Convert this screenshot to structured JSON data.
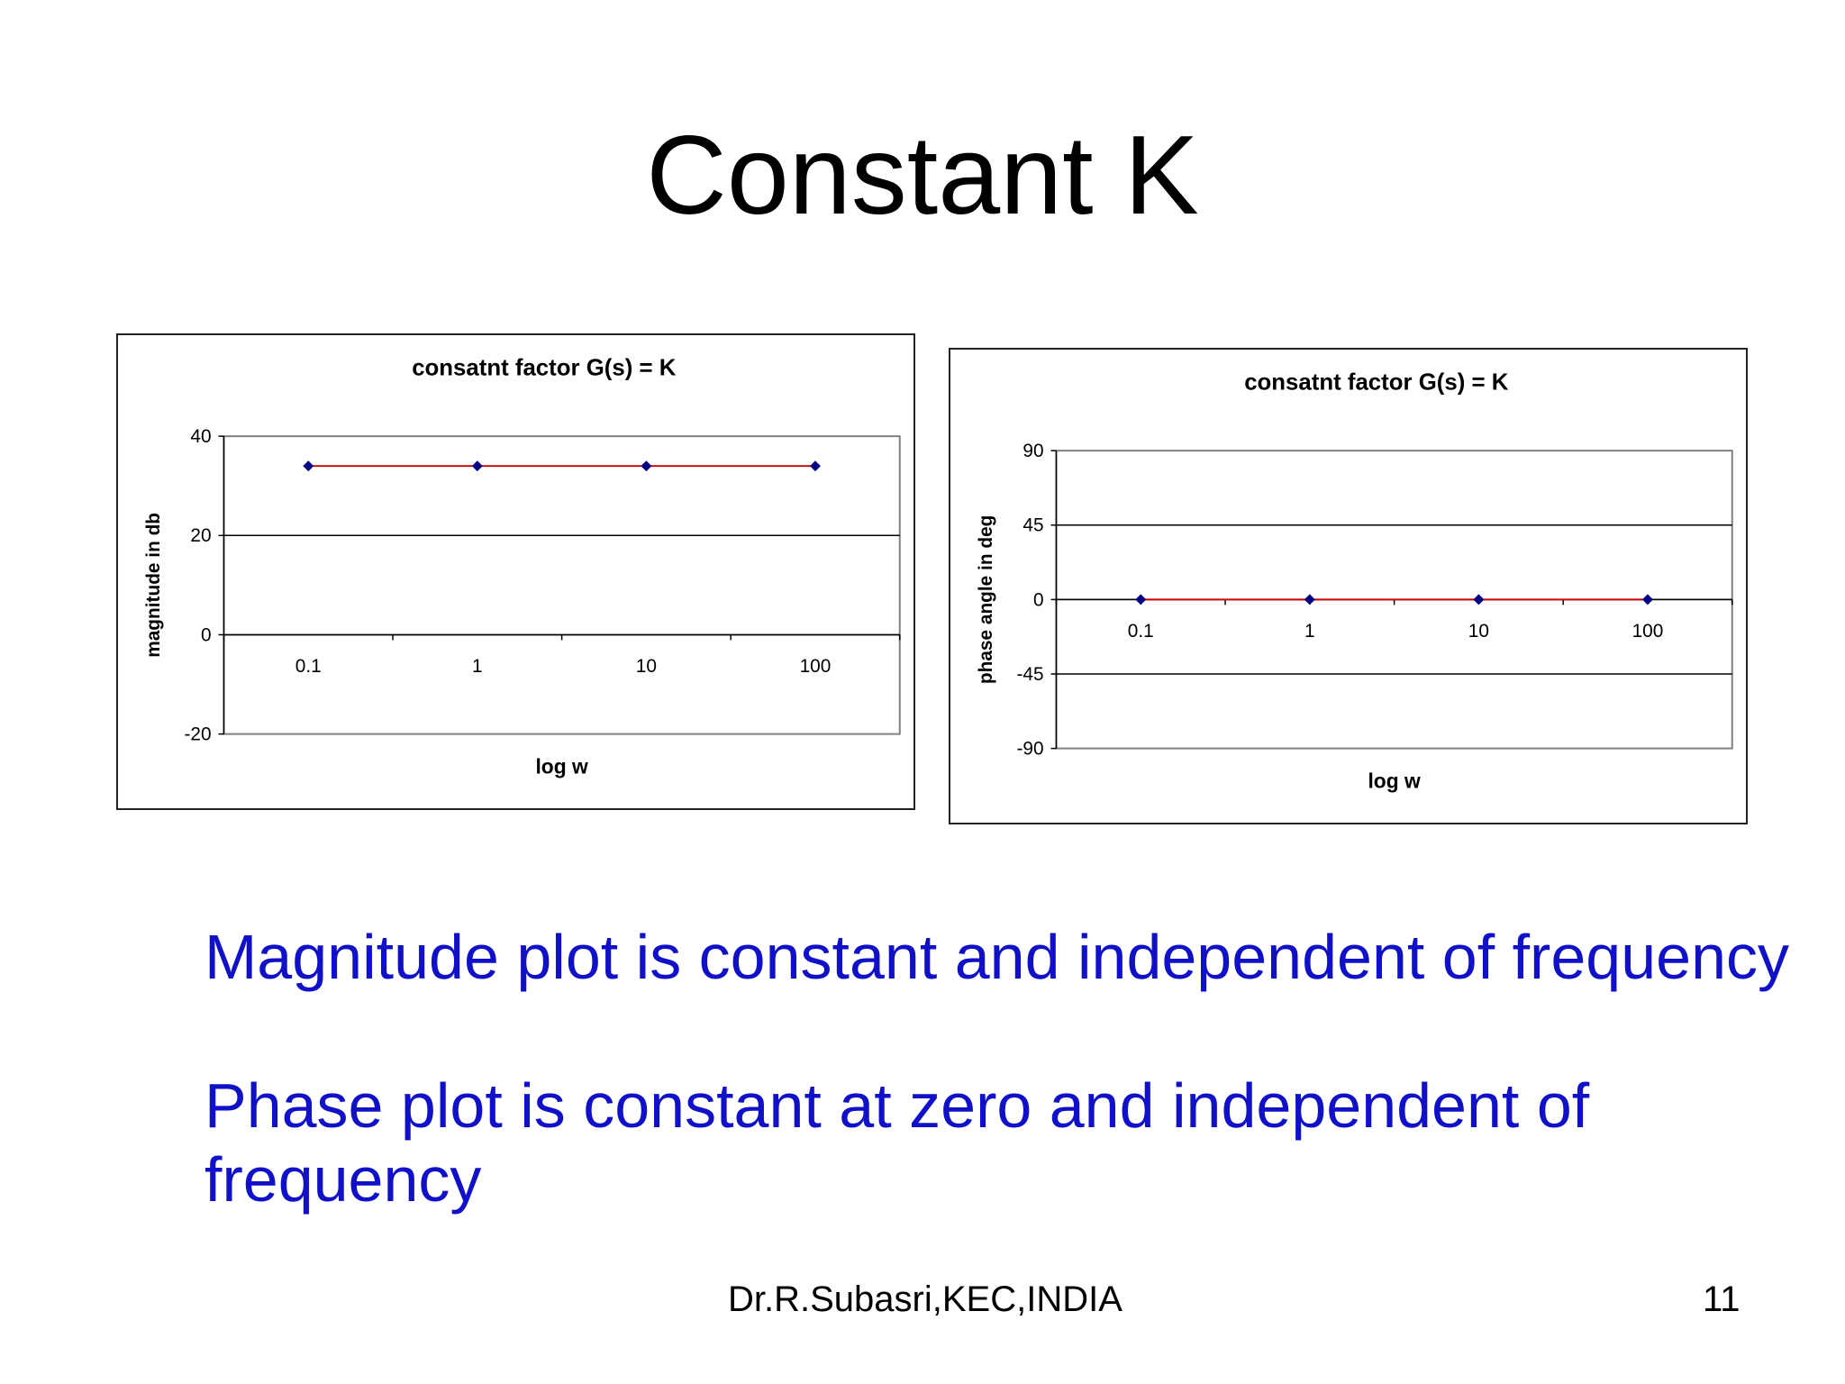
{
  "slide": {
    "title": "Constant K",
    "bullets": [
      "Magnitude plot is constant and independent of frequency",
      "Phase plot is constant at zero and independent of",
      "frequency"
    ],
    "footer_author": "Dr.R.Subasri,KEC,INDIA",
    "page_number": "11"
  },
  "colors": {
    "text_blue": "#1010c8",
    "series_line": "#cc0000",
    "marker": "#000080",
    "plot_border": "#808080",
    "gridline": "#000000"
  },
  "chart_data": [
    {
      "type": "line",
      "title": "consatnt factor G(s) = K",
      "xlabel": "log w",
      "ylabel": "magnitude in db",
      "categories": [
        "0.1",
        "1",
        "10",
        "100"
      ],
      "series": [
        {
          "values": [
            34,
            34,
            34,
            34
          ]
        }
      ],
      "ylim": [
        -20,
        40
      ],
      "yticks": [
        -20,
        0,
        20,
        40
      ],
      "grid": true,
      "legend": "none"
    },
    {
      "type": "line",
      "title": "consatnt factor G(s) = K",
      "xlabel": "log w",
      "ylabel": "phase angle in deg",
      "categories": [
        "0.1",
        "1",
        "10",
        "100"
      ],
      "series": [
        {
          "values": [
            0,
            0,
            0,
            0
          ]
        }
      ],
      "ylim": [
        -90,
        90
      ],
      "yticks": [
        -90,
        -45,
        0,
        45,
        90
      ],
      "grid": true,
      "legend": "none"
    }
  ]
}
